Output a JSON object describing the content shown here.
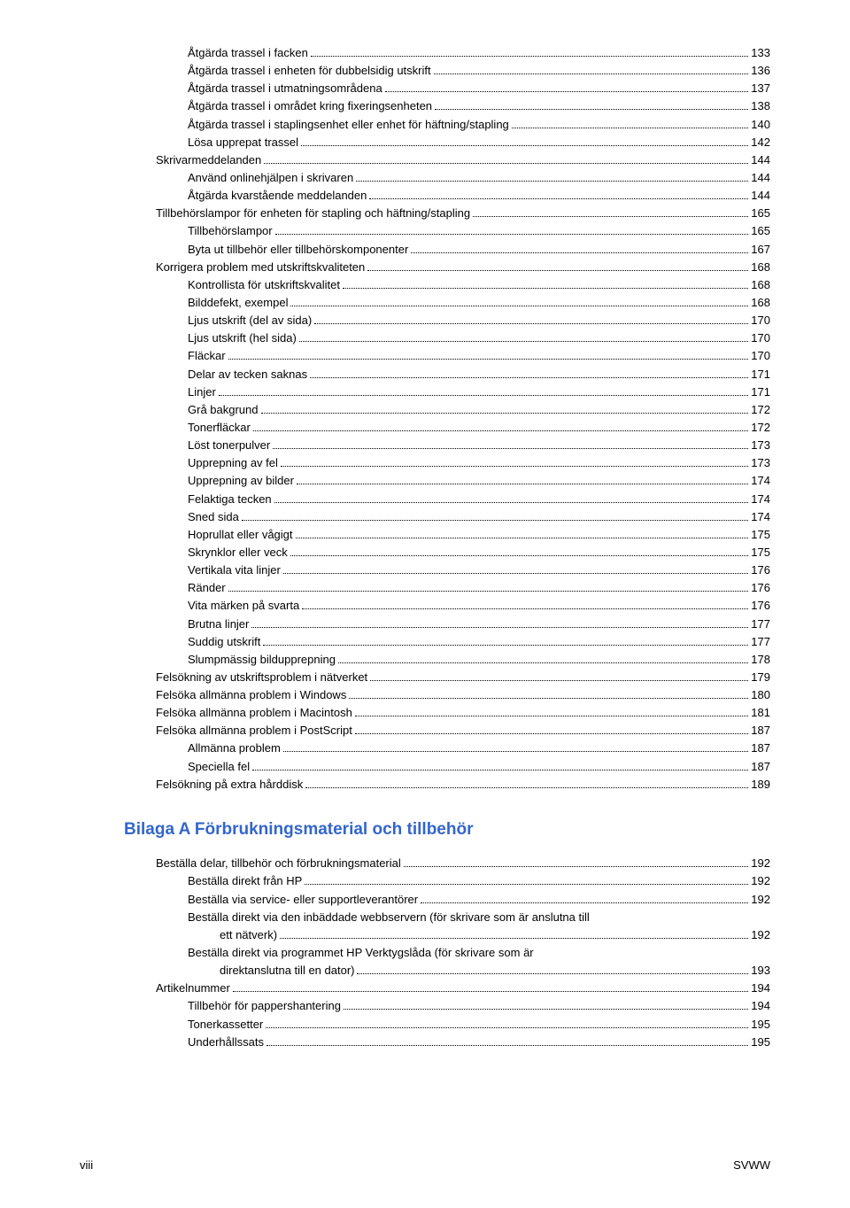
{
  "toc": [
    {
      "label": "Åtgärda trassel i facken",
      "page": "133",
      "indent": 3
    },
    {
      "label": "Åtgärda trassel i enheten för dubbelsidig utskrift",
      "page": "136",
      "indent": 3
    },
    {
      "label": "Åtgärda trassel i utmatningsområdena",
      "page": "137",
      "indent": 3
    },
    {
      "label": "Åtgärda trassel i området kring fixeringsenheten",
      "page": "138",
      "indent": 3
    },
    {
      "label": "Åtgärda trassel i staplingsenhet eller enhet för häftning/stapling",
      "page": "140",
      "indent": 3
    },
    {
      "label": "Lösa upprepat trassel",
      "page": "142",
      "indent": 3
    },
    {
      "label": "Skrivarmeddelanden",
      "page": "144",
      "indent": 2
    },
    {
      "label": "Använd onlinehjälpen i skrivaren",
      "page": "144",
      "indent": 3
    },
    {
      "label": "Åtgärda kvarstående meddelanden",
      "page": "144",
      "indent": 3
    },
    {
      "label": "Tillbehörslampor för enheten för stapling och häftning/stapling",
      "page": "165",
      "indent": 2
    },
    {
      "label": "Tillbehörslampor",
      "page": "165",
      "indent": 3
    },
    {
      "label": "Byta ut tillbehör eller tillbehörskomponenter",
      "page": "167",
      "indent": 3
    },
    {
      "label": "Korrigera problem med utskriftskvaliteten",
      "page": "168",
      "indent": 2
    },
    {
      "label": "Kontrollista för utskriftskvalitet",
      "page": "168",
      "indent": 3
    },
    {
      "label": "Bilddefekt, exempel",
      "page": "168",
      "indent": 3
    },
    {
      "label": "Ljus utskrift (del av sida)",
      "page": "170",
      "indent": 3
    },
    {
      "label": "Ljus utskrift (hel sida)",
      "page": "170",
      "indent": 3
    },
    {
      "label": "Fläckar",
      "page": "170",
      "indent": 3
    },
    {
      "label": "Delar av tecken saknas",
      "page": "171",
      "indent": 3
    },
    {
      "label": "Linjer",
      "page": "171",
      "indent": 3
    },
    {
      "label": "Grå bakgrund",
      "page": "172",
      "indent": 3
    },
    {
      "label": "Tonerfläckar",
      "page": "172",
      "indent": 3
    },
    {
      "label": "Löst tonerpulver",
      "page": "173",
      "indent": 3
    },
    {
      "label": "Upprepning av fel",
      "page": "173",
      "indent": 3
    },
    {
      "label": "Upprepning av bilder",
      "page": "174",
      "indent": 3
    },
    {
      "label": "Felaktiga tecken",
      "page": "174",
      "indent": 3
    },
    {
      "label": "Sned sida",
      "page": "174",
      "indent": 3
    },
    {
      "label": "Hoprullat eller vågigt",
      "page": "175",
      "indent": 3
    },
    {
      "label": "Skrynklor eller veck",
      "page": "175",
      "indent": 3
    },
    {
      "label": "Vertikala vita linjer",
      "page": "176",
      "indent": 3
    },
    {
      "label": "Ränder",
      "page": "176",
      "indent": 3
    },
    {
      "label": "Vita märken på svarta",
      "page": "176",
      "indent": 3
    },
    {
      "label": "Brutna linjer",
      "page": "177",
      "indent": 3
    },
    {
      "label": "Suddig utskrift",
      "page": "177",
      "indent": 3
    },
    {
      "label": "Slumpmässig bildupprepning",
      "page": "178",
      "indent": 3
    },
    {
      "label": "Felsökning av utskriftsproblem i nätverket",
      "page": "179",
      "indent": 2
    },
    {
      "label": "Felsöka allmänna problem i Windows",
      "page": "180",
      "indent": 2
    },
    {
      "label": "Felsöka allmänna problem i Macintosh",
      "page": "181",
      "indent": 2
    },
    {
      "label": "Felsöka allmänna problem i PostScript",
      "page": "187",
      "indent": 2
    },
    {
      "label": "Allmänna problem",
      "page": "187",
      "indent": 3
    },
    {
      "label": "Speciella fel",
      "page": "187",
      "indent": 3
    },
    {
      "label": "Felsökning på extra hårddisk",
      "page": "189",
      "indent": 2
    }
  ],
  "section_heading": "Bilaga A  Förbrukningsmaterial och tillbehör",
  "toc2": [
    {
      "label": "Beställa delar, tillbehör och förbrukningsmaterial",
      "page": "192",
      "indent": 2
    },
    {
      "label": "Beställa direkt från HP",
      "page": "192",
      "indent": 3
    },
    {
      "label": "Beställa via service- eller supportleverantörer",
      "page": "192",
      "indent": 3
    },
    {
      "label": "Beställa direkt via den inbäddade webbservern (för skrivare som är anslutna till",
      "indent": 3,
      "wrap": true
    },
    {
      "label": "ett nätverk)",
      "page": "192",
      "indent": 4
    },
    {
      "label": "Beställa direkt via programmet HP Verktygslåda (för skrivare som är",
      "indent": 3,
      "wrap": true
    },
    {
      "label": "direktanslutna till en dator)",
      "page": "193",
      "indent": 4
    },
    {
      "label": "Artikelnummer",
      "page": "194",
      "indent": 2
    },
    {
      "label": "Tillbehör för pappershantering",
      "page": "194",
      "indent": 3
    },
    {
      "label": "Tonerkassetter",
      "page": "195",
      "indent": 3
    },
    {
      "label": "Underhållssats",
      "page": "195",
      "indent": 3
    }
  ],
  "footer": {
    "left": "viii",
    "right": "SVWW"
  },
  "colors": {
    "heading": "#3366cc",
    "text": "#000000",
    "bg": "#ffffff"
  }
}
